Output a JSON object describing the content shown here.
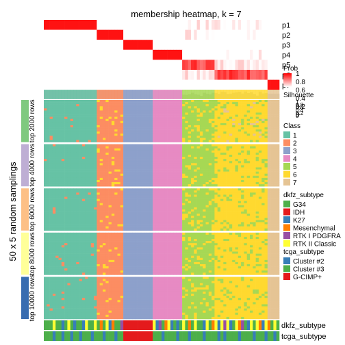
{
  "chart_data": {
    "type": "heatmap",
    "title": "membership heatmap, k = 7",
    "ylabel": "50 x 5 random samplings",
    "n_samples": 80,
    "membership": {
      "rows": [
        "p1",
        "p2",
        "p3",
        "p4",
        "p5",
        "p6",
        "p7"
      ],
      "legend_title": "Prob",
      "legend_ticks": [
        "1",
        "0.8",
        "0.6",
        "0.4",
        "0.2",
        "0"
      ],
      "scale": [
        "#ffffff",
        "#ff0000"
      ]
    },
    "silhouette": {
      "label": "Silhouette",
      "legend_ticks": [
        "1",
        "0.8",
        "0.6",
        "0.4",
        "0.2",
        "0"
      ],
      "color": "#bebebe"
    },
    "class": {
      "title": "Class",
      "levels": [
        "1",
        "2",
        "3",
        "4",
        "5",
        "6",
        "7"
      ],
      "colors": [
        "#66c2a5",
        "#fc8d62",
        "#8da0cb",
        "#e78ac3",
        "#a6d854",
        "#ffd92f",
        "#e5c494"
      ],
      "sample_class": [
        1,
        1,
        1,
        1,
        1,
        1,
        1,
        1,
        1,
        1,
        1,
        1,
        1,
        1,
        1,
        1,
        1,
        1,
        2,
        2,
        2,
        2,
        2,
        2,
        2,
        2,
        2,
        3,
        3,
        3,
        3,
        3,
        3,
        3,
        3,
        3,
        3,
        4,
        4,
        4,
        4,
        4,
        4,
        4,
        4,
        4,
        4,
        5,
        5,
        5,
        5,
        5,
        5,
        5,
        5,
        5,
        5,
        5,
        6,
        6,
        6,
        6,
        6,
        6,
        6,
        6,
        6,
        6,
        6,
        6,
        6,
        6,
        6,
        6,
        6,
        6,
        7,
        7,
        7,
        7
      ]
    },
    "row_groups": [
      {
        "label": "top 2000 rows",
        "color": "#7fc97f"
      },
      {
        "label": "top 4000 rows",
        "color": "#beaed4"
      },
      {
        "label": "top 6000 rows",
        "color": "#fdc086"
      },
      {
        "label": "top 8000 rows",
        "color": "#ffff99"
      },
      {
        "label": "top 10000 rows",
        "color": "#386cb0"
      }
    ],
    "dkfz_subtype": {
      "title": "dkfz_subtype",
      "levels": [
        "G34",
        "IDH",
        "K27",
        "Mesenchymal",
        "RTK I PDGFRA",
        "RTK II Classic"
      ],
      "colors": [
        "#4daf4a",
        "#e41a1c",
        "#377eb8",
        "#ff7f00",
        "#984ea3",
        "#ffff33"
      ],
      "sample_values": [
        "G34",
        "G34",
        "G34",
        "RTK II Classic",
        "G34",
        "G34",
        "K27",
        "G34",
        "RTK II Classic",
        "G34",
        "K27",
        "G34",
        "G34",
        "K27",
        "RTK II Classic",
        "G34",
        "G34",
        "RTK II Classic",
        "G34",
        "Mesenchymal",
        "G34",
        "RTK II Classic",
        "K27",
        "Mesenchymal",
        "G34",
        "G34",
        "RTK I PDGFRA",
        "IDH",
        "IDH",
        "IDH",
        "IDH",
        "IDH",
        "IDH",
        "IDH",
        "IDH",
        "IDH",
        "IDH",
        "RTK II Classic",
        "K27",
        "RTK I PDGFRA",
        "G34",
        "Mesenchymal",
        "RTK II Classic",
        "K27",
        "G34",
        "K27",
        "G34",
        "RTK II Classic",
        "G34",
        "Mesenchymal",
        "G34",
        "RTK II Classic",
        "G34",
        "G34",
        "K27",
        "RTK II Classic",
        "G34",
        "Mesenchymal",
        "RTK II Classic",
        "K27",
        "RTK II Classic",
        "RTK I PDGFRA",
        "RTK II Classic",
        "K27",
        "G34",
        "RTK II Classic",
        "Mesenchymal",
        "RTK I PDGFRA",
        "G34",
        "K27",
        "RTK II Classic",
        "G34",
        "RTK II Classic",
        "Mesenchymal",
        "K27",
        "RTK II Classic",
        "Mesenchymal",
        "G34",
        "RTK II Classic",
        "G34"
      ]
    },
    "tcga_subtype": {
      "title": "tcga_subtype",
      "levels": [
        "Cluster #2",
        "Cluster #3",
        "G-CIMP+"
      ],
      "colors": [
        "#377eb8",
        "#4daf4a",
        "#e41a1c"
      ],
      "sample_values": [
        "Cluster #3",
        "Cluster #3",
        "Cluster #3",
        "Cluster #2",
        "Cluster #3",
        "Cluster #3",
        "Cluster #2",
        "Cluster #3",
        "Cluster #3",
        "Cluster #2",
        "Cluster #3",
        "Cluster #3",
        "Cluster #2",
        "Cluster #3",
        "Cluster #3",
        "Cluster #3",
        "Cluster #2",
        "Cluster #3",
        "Cluster #3",
        "Cluster #3",
        "Cluster #2",
        "Cluster #3",
        "Cluster #3",
        "Cluster #3",
        "Cluster #2",
        "Cluster #3",
        "Cluster #3",
        "G-CIMP+",
        "G-CIMP+",
        "G-CIMP+",
        "G-CIMP+",
        "G-CIMP+",
        "G-CIMP+",
        "G-CIMP+",
        "G-CIMP+",
        "G-CIMP+",
        "G-CIMP+",
        "Cluster #3",
        "Cluster #3",
        "Cluster #3",
        "Cluster #2",
        "Cluster #3",
        "Cluster #3",
        "Cluster #3",
        "Cluster #3",
        "Cluster #2",
        "Cluster #3",
        "Cluster #3",
        "Cluster #3",
        "Cluster #2",
        "Cluster #3",
        "Cluster #3",
        "Cluster #3",
        "Cluster #3",
        "Cluster #2",
        "Cluster #3",
        "Cluster #3",
        "Cluster #3",
        "Cluster #3",
        "Cluster #2",
        "Cluster #3",
        "Cluster #2",
        "Cluster #3",
        "Cluster #3",
        "Cluster #3",
        "Cluster #3",
        "Cluster #2",
        "Cluster #3",
        "Cluster #3",
        "Cluster #3",
        "Cluster #3",
        "Cluster #2",
        "Cluster #3",
        "Cluster #3",
        "Cluster #3",
        "Cluster #2",
        "Cluster #3",
        "Cluster #3",
        "Cluster #2",
        "Cluster #3"
      ]
    }
  }
}
